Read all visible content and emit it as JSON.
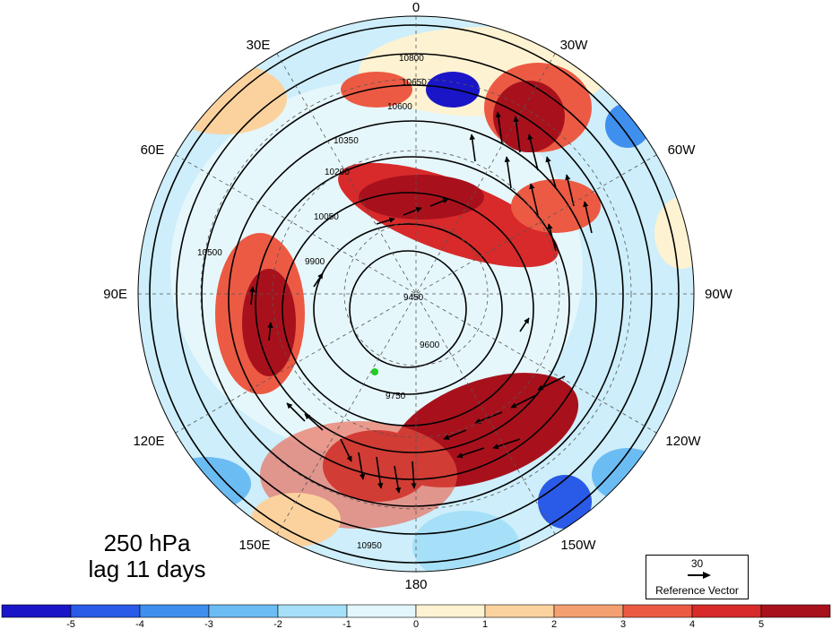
{
  "figure": {
    "level_label": "250 hPa",
    "lag_label": "lag 11 days"
  },
  "longitude_labels": {
    "top": "0",
    "bottom": "180",
    "left_mid": "90E",
    "right_mid": "90W",
    "upper_left_1": "30E",
    "upper_left_2": "60E",
    "upper_right_1": "30W",
    "upper_right_2": "60W",
    "lower_left_1": "120E",
    "lower_left_2": "150E",
    "lower_right_1": "120W",
    "lower_right_2": "150W"
  },
  "contour_labels": [
    "10800",
    "10650",
    "10600",
    "10350",
    "10200",
    "10050",
    "9750",
    "9900",
    "9450",
    "9600",
    "10950",
    "10500"
  ],
  "reference_vector": {
    "magnitude": "30",
    "label": "Reference Vector"
  },
  "colorbar": {
    "ticks": [
      "-5",
      "-4",
      "-3",
      "-2",
      "-1",
      "0",
      "1",
      "2",
      "3",
      "4",
      "5"
    ],
    "colors": [
      "#1a16c8",
      "#2a5ae8",
      "#3f8fee",
      "#6cbcf4",
      "#a6e0f8",
      "#e2f6fb",
      "#fdf2d2",
      "#fbd29e",
      "#f4a070",
      "#ec5a44",
      "#d82a2a",
      "#a8111c"
    ]
  },
  "marker": {
    "color": "#22cc22"
  }
}
